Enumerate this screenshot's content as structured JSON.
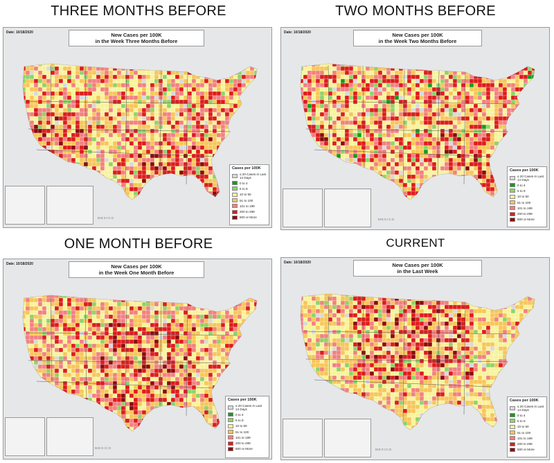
{
  "headings": [
    "THREE MONTHS BEFORE",
    "TWO MONTHS BEFORE",
    "ONE MONTH BEFORE",
    "CURRENT"
  ],
  "panels": [
    {
      "date": "Date: 10/18/2020",
      "title_line1": "New Cases per 100K",
      "title_line2": "in the Week Three Months Before",
      "heat": 0.38,
      "hot_region": "south-west"
    },
    {
      "date": "Date: 10/18/2020",
      "title_line1": "New Cases per 100K",
      "title_line2": "in the Week Two Months Before",
      "heat": 0.26,
      "hot_region": "south"
    },
    {
      "date": "Date: 10/18/2020",
      "title_line1": "New Cases per 100K",
      "title_line2": "in the Week One Month Before",
      "heat": 0.4,
      "hot_region": "central"
    },
    {
      "date": "Date: 10/18/2020",
      "title_line1": "New Cases per 100K",
      "title_line2": "in the Last Week",
      "heat": 0.62,
      "hot_region": "north-central"
    }
  ],
  "legend": {
    "title": "Cases per 100K",
    "items": [
      {
        "label": "≤ 20 Cases in Last 14 Days",
        "color": "#d9d9d9"
      },
      {
        "label": "0 to 4",
        "color": "#1a9a1a"
      },
      {
        "label": "5 to 9",
        "color": "#8fd36a"
      },
      {
        "label": "10 to 50",
        "color": "#f7f39a"
      },
      {
        "label": "51 to 100",
        "color": "#f7c65a"
      },
      {
        "label": "101 to 199",
        "color": "#f28080"
      },
      {
        "label": "200 to 499",
        "color": "#dd1c1c"
      },
      {
        "label": "500 or More",
        "color": "#8a0b0b"
      }
    ]
  },
  "inset_label": "MEXICO"
}
